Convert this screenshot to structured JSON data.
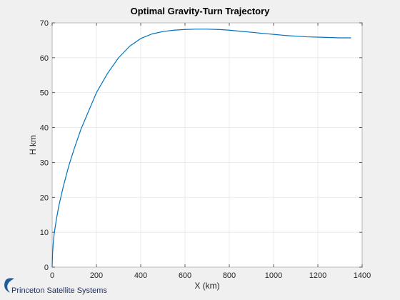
{
  "chart_data": {
    "type": "line",
    "title": "Optimal Gravity-Turn Trajectory",
    "xlabel": "X (km)",
    "ylabel": "H km",
    "xlim": [
      0,
      1400
    ],
    "ylim": [
      0,
      70
    ],
    "xticks": [
      0,
      200,
      400,
      600,
      800,
      1000,
      1200,
      1400
    ],
    "yticks": [
      0,
      10,
      20,
      30,
      40,
      50,
      60,
      70
    ],
    "grid": true,
    "series": [
      {
        "color": "#0072bd",
        "x": [
          0,
          2,
          5,
          10,
          20,
          30,
          50,
          75,
          100,
          130,
          160,
          200,
          250,
          300,
          350,
          400,
          450,
          500,
          550,
          600,
          650,
          700,
          750,
          800,
          850,
          900,
          950,
          1000,
          1050,
          1100,
          1150,
          1200,
          1250,
          1300,
          1350
        ],
        "y": [
          0,
          4,
          7,
          10,
          14,
          17.5,
          23,
          29,
          34,
          39.5,
          44,
          50,
          55.5,
          60,
          63.3,
          65.5,
          66.8,
          67.5,
          67.9,
          68.1,
          68.2,
          68.2,
          68.1,
          67.9,
          67.6,
          67.3,
          67.0,
          66.7,
          66.4,
          66.2,
          66.0,
          65.9,
          65.8,
          65.7,
          65.7
        ]
      }
    ]
  },
  "logo": {
    "text": "Princeton Satellite Systems",
    "color": "#1f5c99"
  }
}
